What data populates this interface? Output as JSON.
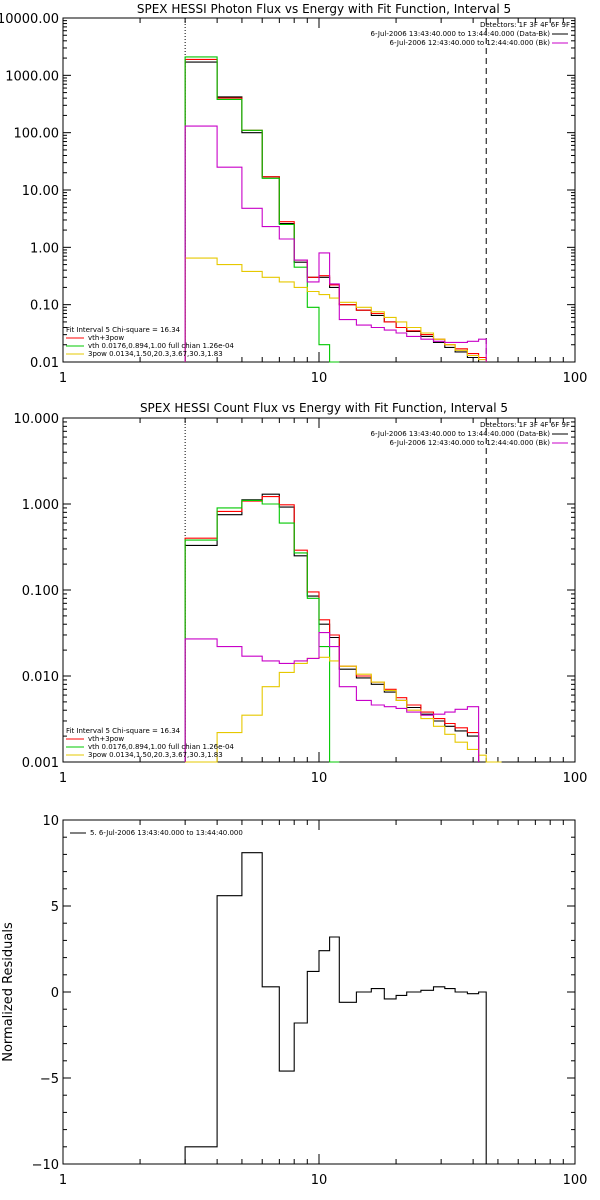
{
  "chart_data": [
    {
      "type": "line",
      "title": "SPEX HESSI Photon Flux vs Energy with Fit Function, Interval 5",
      "xscale": "log",
      "yscale": "log",
      "xlim": [
        1,
        100
      ],
      "ylim": [
        0.01,
        10000
      ],
      "x_ticks": [
        "1",
        "10",
        "100"
      ],
      "y_ticks": [
        "0.01",
        "0.10",
        "1.00",
        "10.00",
        "100.00",
        "1000.00",
        "10000.00"
      ],
      "y_tick_values": [
        0.01,
        0.1,
        1,
        10,
        100,
        1000,
        10000
      ],
      "vlines": [
        {
          "x": 3,
          "style": "dotted"
        },
        {
          "x": 45,
          "style": "dashed"
        }
      ],
      "bin_edges": [
        3,
        4,
        5,
        6,
        7,
        8,
        9,
        10,
        11,
        12,
        14,
        16,
        18,
        20,
        22,
        25,
        28,
        31,
        34,
        38,
        42,
        45
      ],
      "series": [
        {
          "color": "#000000",
          "values": [
            1700,
            420,
            100,
            17,
            2.6,
            0.55,
            0.3,
            0.3,
            0.2,
            0.1,
            0.08,
            0.065,
            0.05,
            0.04,
            0.034,
            0.028,
            0.022,
            0.018,
            0.015,
            0.012,
            0.01
          ]
        },
        {
          "color": "#ff0000",
          "values": [
            1900,
            400,
            110,
            17,
            2.8,
            0.6,
            0.3,
            0.32,
            0.22,
            0.1,
            0.08,
            0.07,
            0.05,
            0.04,
            0.035,
            0.03,
            0.025,
            0.02,
            0.017,
            0.014,
            0.012
          ]
        },
        {
          "color": "#00c800",
          "values": [
            2100,
            380,
            110,
            16,
            2.5,
            0.45,
            0.09,
            0.02,
            0.004
          ]
        },
        {
          "color": "#e6c800",
          "values": [
            0.65,
            0.5,
            0.38,
            0.3,
            0.25,
            0.2,
            0.17,
            0.15,
            0.13,
            0.11,
            0.09,
            0.075,
            0.06,
            0.05,
            0.04,
            0.032,
            0.025,
            0.02,
            0.016,
            0.013,
            0.011
          ]
        },
        {
          "color": "#c800c8",
          "values": [
            130,
            25,
            4.8,
            2.3,
            1.4,
            0.6,
            0.25,
            0.8,
            0.23,
            0.055,
            0.044,
            0.04,
            0.036,
            0.032,
            0.028,
            0.025,
            0.023,
            0.022,
            0.022,
            0.023,
            0.025
          ]
        }
      ],
      "legend_right": {
        "detectors": "Detectors: 1F 3F 4F 6F 9F",
        "lines": [
          {
            "text": "6-Jul-2006 13:43:40.000 to 13:44:40.000 (Data-Bk)",
            "color": "#000000"
          },
          {
            "text": "6-Jul-2006 12:43:40.000 to 12:44:40.000 (Bk)",
            "color": "#c800c8"
          }
        ]
      },
      "legend_left": {
        "header": "Fit Interval 5   Chi-square = 16.34",
        "lines": [
          {
            "text": "vth+3pow",
            "color": "#ff0000"
          },
          {
            "text": "vth 0.0176,0.894,1.00  full chian 1.26e-04",
            "color": "#00c800"
          },
          {
            "text": "3pow 0.0134,1.50,20.3,3.67,30.3,1.83",
            "color": "#e6c800"
          }
        ]
      }
    },
    {
      "type": "line",
      "title": "SPEX HESSI Count Flux vs Energy with Fit Function, Interval 5",
      "xscale": "log",
      "yscale": "log",
      "xlim": [
        1,
        100
      ],
      "ylim": [
        0.001,
        10
      ],
      "x_ticks": [
        "1",
        "10",
        "100"
      ],
      "y_ticks": [
        "0.001",
        "0.010",
        "0.100",
        "1.000",
        "10.000"
      ],
      "y_tick_values": [
        0.001,
        0.01,
        0.1,
        1,
        10
      ],
      "vlines": [
        {
          "x": 3,
          "style": "dotted"
        },
        {
          "x": 45,
          "style": "dashed"
        }
      ],
      "bin_edges": [
        3,
        4,
        5,
        6,
        7,
        8,
        9,
        10,
        11,
        12,
        14,
        16,
        18,
        20,
        22,
        25,
        28,
        31,
        34,
        38,
        42,
        45
      ],
      "series": [
        {
          "color": "#000000",
          "values": [
            0.33,
            0.75,
            1.12,
            1.3,
            0.92,
            0.25,
            0.085,
            0.04,
            0.028,
            0.012,
            0.0095,
            0.008,
            0.0065,
            0.0052,
            0.0043,
            0.0036,
            0.003,
            0.0026,
            0.0023,
            0.002
          ]
        },
        {
          "color": "#ff0000",
          "values": [
            0.4,
            0.82,
            1.08,
            1.22,
            0.98,
            0.29,
            0.095,
            0.045,
            0.03,
            0.013,
            0.01,
            0.0085,
            0.007,
            0.0056,
            0.0046,
            0.0038,
            0.0032,
            0.0028,
            0.0025,
            0.0022
          ]
        },
        {
          "color": "#00c800",
          "values": [
            0.38,
            0.9,
            1.1,
            1.0,
            0.6,
            0.27,
            0.08,
            0.022,
            0.0008
          ]
        },
        {
          "color": "#e6c800",
          "values": [
            0.0008,
            0.0022,
            0.0035,
            0.0075,
            0.011,
            0.014,
            0.016,
            0.0165,
            0.015,
            0.013,
            0.0105,
            0.0085,
            0.0068,
            0.0052,
            0.004,
            0.0032,
            0.0026,
            0.0021,
            0.0017,
            0.0014,
            0.0012,
            0.001,
            0.0008
          ]
        },
        {
          "color": "#c800c8",
          "values": [
            0.027,
            0.022,
            0.017,
            0.015,
            0.014,
            0.015,
            0.016,
            0.032,
            0.022,
            0.0075,
            0.0052,
            0.0046,
            0.0044,
            0.0042,
            0.0038,
            0.0035,
            0.0036,
            0.0038,
            0.0041,
            0.0044
          ]
        }
      ],
      "legend_right": {
        "detectors": "Detectors: 1F 3F 4F 6F 9F",
        "lines": [
          {
            "text": "6-Jul-2006 13:43:40.000 to 13:44:40.000 (Data-Bk)",
            "color": "#000000"
          },
          {
            "text": "6-Jul-2006 12:43:40.000 to 12:44:40.000 (Bk)",
            "color": "#c800c8"
          }
        ]
      },
      "legend_left": {
        "header": "Fit Interval 5   Chi-square = 16.34",
        "lines": [
          {
            "text": "vth+3pow",
            "color": "#ff0000"
          },
          {
            "text": "vth 0.0176,0.894,1.00  full chian 1.26e-04",
            "color": "#00c800"
          },
          {
            "text": "3pow 0.0134,1.50,20.3,3.67,30.3,1.83",
            "color": "#e6c800"
          }
        ]
      }
    },
    {
      "type": "line",
      "title": "",
      "xscale": "log",
      "yscale": "linear",
      "xlim": [
        1,
        100
      ],
      "ylim": [
        -10,
        10
      ],
      "ylabel": "Normalized Residuals",
      "x_ticks": [
        "1",
        "10",
        "100"
      ],
      "y_ticks": [
        "10",
        "5",
        "0",
        "−5",
        "−10"
      ],
      "y_tick_values": [
        10,
        5,
        0,
        -5,
        -10
      ],
      "bin_edges": [
        3,
        4,
        5,
        6,
        7,
        8,
        9,
        10,
        11,
        12,
        14,
        16,
        18,
        20,
        22,
        25,
        28,
        31,
        34,
        38,
        42,
        45
      ],
      "series": [
        {
          "color": "#000000",
          "values": [
            -9,
            5.6,
            8.1,
            0.3,
            -4.6,
            -1.8,
            1.2,
            2.4,
            3.2,
            -0.6,
            0.0,
            0.2,
            -0.4,
            -0.2,
            0.0,
            0.1,
            0.3,
            0.2,
            0.0,
            -0.1,
            0.0
          ]
        }
      ],
      "legend_left": {
        "lines": [
          {
            "text": "5. 6-Jul-2006 13:43:40.000 to 13:44:40.000",
            "color": "#000000"
          }
        ]
      }
    }
  ]
}
